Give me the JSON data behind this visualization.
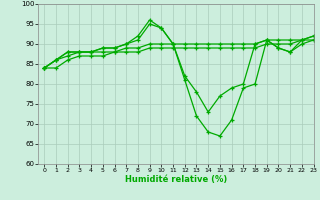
{
  "xlabel": "Humidité relative (%)",
  "xlim": [
    -0.5,
    23
  ],
  "ylim": [
    60,
    100
  ],
  "yticks": [
    60,
    65,
    70,
    75,
    80,
    85,
    90,
    95,
    100
  ],
  "xticks": [
    0,
    1,
    2,
    3,
    4,
    5,
    6,
    7,
    8,
    9,
    10,
    11,
    12,
    13,
    14,
    15,
    16,
    17,
    18,
    19,
    20,
    21,
    22,
    23
  ],
  "bg_color": "#cceedd",
  "grid_color": "#aaccbb",
  "line_color": "#00aa00",
  "series": [
    [
      84,
      84,
      86,
      87,
      87,
      87,
      88,
      88,
      88,
      89,
      89,
      89,
      89,
      89,
      89,
      89,
      89,
      89,
      89,
      90,
      90,
      90,
      91,
      91
    ],
    [
      84,
      86,
      87,
      88,
      88,
      88,
      88,
      89,
      89,
      90,
      90,
      90,
      90,
      90,
      90,
      90,
      90,
      90,
      90,
      91,
      91,
      91,
      91,
      92
    ],
    [
      84,
      86,
      88,
      88,
      88,
      89,
      89,
      90,
      91,
      95,
      94,
      90,
      82,
      78,
      73,
      77,
      79,
      80,
      90,
      91,
      89,
      88,
      90,
      91
    ],
    [
      84,
      86,
      88,
      88,
      88,
      89,
      89,
      90,
      92,
      96,
      94,
      90,
      81,
      72,
      68,
      67,
      71,
      79,
      80,
      91,
      89,
      88,
      91,
      92
    ]
  ]
}
